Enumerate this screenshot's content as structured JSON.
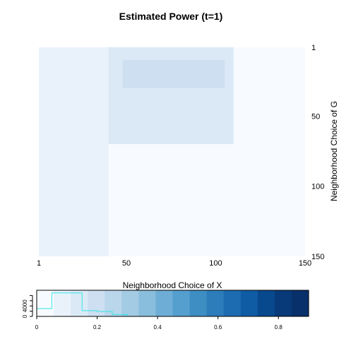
{
  "chart_data": [
    {
      "type": "heatmap",
      "title": "Estimated Power (t=1)",
      "xlabel": "Neighborhood Choice of X",
      "ylabel": "Neighborhood Choice of G",
      "xlim": [
        1,
        150
      ],
      "ylim": [
        1,
        150
      ],
      "y_reversed": true,
      "x_ticks": [
        "1",
        "50",
        "100",
        "150"
      ],
      "y_ticks": [
        "1",
        "50",
        "100",
        "150"
      ],
      "grid": false,
      "value_range": [
        0,
        0.9
      ],
      "colorscale": [
        "#f7fbff",
        "#e9f2fb",
        "#dbe9f6",
        "#cddff1",
        "#bad6eb",
        "#a3cbe3",
        "#89bedc",
        "#6eaed6",
        "#559fce",
        "#3e8ec4",
        "#2d7dbb",
        "#1d6cb1",
        "#0f5ba4",
        "#08498e",
        "#083a79",
        "#08306b"
      ],
      "regions": [
        {
          "x": [
            1,
            150
          ],
          "y": [
            1,
            150
          ],
          "value": 0.05
        },
        {
          "x": [
            1,
            40
          ],
          "y": [
            1,
            150
          ],
          "value": 0.09
        },
        {
          "x": [
            40,
            110
          ],
          "y": [
            1,
            70
          ],
          "value": 0.13
        },
        {
          "x": [
            48,
            105
          ],
          "y": [
            10,
            30
          ],
          "value": 0.17
        },
        {
          "x": [
            60,
            100
          ],
          "y": [
            70,
            140
          ],
          "value": 0.02
        }
      ]
    },
    {
      "type": "histogram",
      "title": "",
      "xlim": [
        0,
        0.9
      ],
      "x_ticks": [
        "0",
        "0.2",
        "0.4",
        "0.6",
        "0.8"
      ],
      "y_ticks": [
        "0",
        "4000"
      ],
      "bins": [
        0,
        0.05,
        0.1,
        0.15,
        0.2,
        0.25,
        0.3,
        0.35,
        0.4,
        0.45,
        0.5,
        0.55,
        0.6,
        0.65,
        0.7,
        0.75,
        0.8,
        0.85,
        0.9
      ],
      "counts": [
        3000,
        9000,
        9000,
        2200,
        1900,
        700,
        0,
        0,
        0,
        0,
        0,
        0,
        0,
        0,
        0,
        0,
        0,
        0
      ],
      "line_color": "#33e6e6"
    }
  ]
}
